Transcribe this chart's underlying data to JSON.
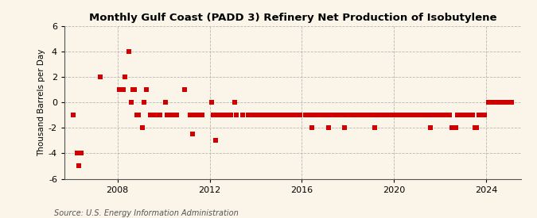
{
  "title": "Monthly Gulf Coast (PADD 3) Refinery Net Production of Isobutylene",
  "ylabel": "Thousand Barrels per Day",
  "source": "Source: U.S. Energy Information Administration",
  "background_color": "#faf5e8",
  "dot_color": "#cc0000",
  "ylim": [
    -6,
    6
  ],
  "yticks": [
    -6,
    -4,
    -2,
    0,
    2,
    4,
    6
  ],
  "xlim_start": 2005.7,
  "xlim_end": 2025.5,
  "xticks": [
    2008,
    2012,
    2016,
    2020,
    2024
  ],
  "data_points": [
    [
      2006.083,
      -1.0
    ],
    [
      2006.25,
      -4.0
    ],
    [
      2006.333,
      -5.0
    ],
    [
      2006.417,
      -4.0
    ],
    [
      2007.25,
      2.0
    ],
    [
      2008.083,
      1.0
    ],
    [
      2008.25,
      1.0
    ],
    [
      2008.333,
      2.0
    ],
    [
      2008.5,
      4.0
    ],
    [
      2008.583,
      0.0
    ],
    [
      2008.667,
      1.0
    ],
    [
      2008.75,
      1.0
    ],
    [
      2008.833,
      -1.0
    ],
    [
      2008.917,
      -1.0
    ],
    [
      2009.083,
      -2.0
    ],
    [
      2009.167,
      0.0
    ],
    [
      2009.25,
      1.0
    ],
    [
      2009.417,
      -1.0
    ],
    [
      2009.5,
      -1.0
    ],
    [
      2009.583,
      -1.0
    ],
    [
      2009.667,
      -1.0
    ],
    [
      2009.833,
      -1.0
    ],
    [
      2010.083,
      0.0
    ],
    [
      2010.167,
      -1.0
    ],
    [
      2010.25,
      -1.0
    ],
    [
      2010.333,
      -1.0
    ],
    [
      2010.417,
      -1.0
    ],
    [
      2010.583,
      -1.0
    ],
    [
      2010.917,
      1.0
    ],
    [
      2011.167,
      -1.0
    ],
    [
      2011.25,
      -2.5
    ],
    [
      2011.333,
      -1.0
    ],
    [
      2011.417,
      -1.0
    ],
    [
      2011.5,
      -1.0
    ],
    [
      2011.667,
      -1.0
    ],
    [
      2012.083,
      0.0
    ],
    [
      2012.167,
      -1.0
    ],
    [
      2012.25,
      -3.0
    ],
    [
      2012.333,
      -1.0
    ],
    [
      2012.417,
      -1.0
    ],
    [
      2012.583,
      -1.0
    ],
    [
      2012.667,
      -1.0
    ],
    [
      2012.75,
      -1.0
    ],
    [
      2012.917,
      -1.0
    ],
    [
      2013.083,
      0.0
    ],
    [
      2013.167,
      -1.0
    ],
    [
      2013.417,
      -1.0
    ],
    [
      2013.667,
      -1.0
    ],
    [
      2013.75,
      -1.0
    ],
    [
      2013.833,
      -1.0
    ],
    [
      2013.917,
      -1.0
    ],
    [
      2014.083,
      -1.0
    ],
    [
      2014.25,
      -1.0
    ],
    [
      2014.333,
      -1.0
    ],
    [
      2014.417,
      -1.0
    ],
    [
      2014.5,
      -1.0
    ],
    [
      2014.667,
      -1.0
    ],
    [
      2014.75,
      -1.0
    ],
    [
      2014.833,
      -1.0
    ],
    [
      2014.917,
      -1.0
    ],
    [
      2015.083,
      -1.0
    ],
    [
      2015.167,
      -1.0
    ],
    [
      2015.25,
      -1.0
    ],
    [
      2015.333,
      -1.0
    ],
    [
      2015.417,
      -1.0
    ],
    [
      2015.5,
      -1.0
    ],
    [
      2015.583,
      -1.0
    ],
    [
      2015.75,
      -1.0
    ],
    [
      2015.833,
      -1.0
    ],
    [
      2015.917,
      -1.0
    ],
    [
      2016.167,
      -1.0
    ],
    [
      2016.25,
      -1.0
    ],
    [
      2016.333,
      -1.0
    ],
    [
      2016.417,
      -2.0
    ],
    [
      2016.5,
      -1.0
    ],
    [
      2016.583,
      -1.0
    ],
    [
      2016.667,
      -1.0
    ],
    [
      2016.833,
      -1.0
    ],
    [
      2016.917,
      -1.0
    ],
    [
      2017.083,
      -1.0
    ],
    [
      2017.167,
      -2.0
    ],
    [
      2017.25,
      -1.0
    ],
    [
      2017.417,
      -1.0
    ],
    [
      2017.5,
      -1.0
    ],
    [
      2017.667,
      -1.0
    ],
    [
      2017.75,
      -1.0
    ],
    [
      2017.833,
      -2.0
    ],
    [
      2017.917,
      -1.0
    ],
    [
      2018.083,
      -1.0
    ],
    [
      2018.167,
      -1.0
    ],
    [
      2018.25,
      -1.0
    ],
    [
      2018.333,
      -1.0
    ],
    [
      2018.417,
      -1.0
    ],
    [
      2018.5,
      -1.0
    ],
    [
      2018.583,
      -1.0
    ],
    [
      2018.667,
      -1.0
    ],
    [
      2018.75,
      -1.0
    ],
    [
      2018.833,
      -1.0
    ],
    [
      2018.917,
      -1.0
    ],
    [
      2019.083,
      -1.0
    ],
    [
      2019.167,
      -2.0
    ],
    [
      2019.25,
      -1.0
    ],
    [
      2019.333,
      -1.0
    ],
    [
      2019.417,
      -1.0
    ],
    [
      2019.5,
      -1.0
    ],
    [
      2019.583,
      -1.0
    ],
    [
      2019.667,
      -1.0
    ],
    [
      2019.75,
      -1.0
    ],
    [
      2019.833,
      -1.0
    ],
    [
      2019.917,
      -1.0
    ],
    [
      2020.083,
      -1.0
    ],
    [
      2020.167,
      -1.0
    ],
    [
      2020.25,
      -1.0
    ],
    [
      2020.417,
      -1.0
    ],
    [
      2020.5,
      -1.0
    ],
    [
      2020.583,
      -1.0
    ],
    [
      2020.667,
      -1.0
    ],
    [
      2020.75,
      -1.0
    ],
    [
      2020.833,
      -1.0
    ],
    [
      2020.917,
      -1.0
    ],
    [
      2021.083,
      -1.0
    ],
    [
      2021.167,
      -1.0
    ],
    [
      2021.25,
      -1.0
    ],
    [
      2021.333,
      -1.0
    ],
    [
      2021.417,
      -1.0
    ],
    [
      2021.5,
      -1.0
    ],
    [
      2021.583,
      -2.0
    ],
    [
      2021.667,
      -1.0
    ],
    [
      2021.75,
      -1.0
    ],
    [
      2021.833,
      -1.0
    ],
    [
      2021.917,
      -1.0
    ],
    [
      2022.083,
      -1.0
    ],
    [
      2022.167,
      -1.0
    ],
    [
      2022.25,
      -1.0
    ],
    [
      2022.333,
      -1.0
    ],
    [
      2022.417,
      -1.0
    ],
    [
      2022.5,
      -2.0
    ],
    [
      2022.583,
      -2.0
    ],
    [
      2022.667,
      -2.0
    ],
    [
      2022.75,
      -1.0
    ],
    [
      2022.833,
      -1.0
    ],
    [
      2022.917,
      -1.0
    ],
    [
      2023.083,
      -1.0
    ],
    [
      2023.167,
      -1.0
    ],
    [
      2023.25,
      -1.0
    ],
    [
      2023.333,
      -1.0
    ],
    [
      2023.417,
      -1.0
    ],
    [
      2023.5,
      -2.0
    ],
    [
      2023.583,
      -2.0
    ],
    [
      2023.667,
      -1.0
    ],
    [
      2023.75,
      -1.0
    ],
    [
      2023.833,
      -1.0
    ],
    [
      2023.917,
      -1.0
    ],
    [
      2024.083,
      0.0
    ],
    [
      2024.167,
      0.0
    ],
    [
      2024.25,
      0.0
    ],
    [
      2024.333,
      0.0
    ],
    [
      2024.417,
      0.0
    ],
    [
      2024.5,
      0.0
    ],
    [
      2024.583,
      0.0
    ],
    [
      2024.667,
      0.0
    ],
    [
      2024.75,
      0.0
    ],
    [
      2024.833,
      0.0
    ],
    [
      2024.917,
      0.0
    ],
    [
      2025.083,
      0.0
    ]
  ]
}
